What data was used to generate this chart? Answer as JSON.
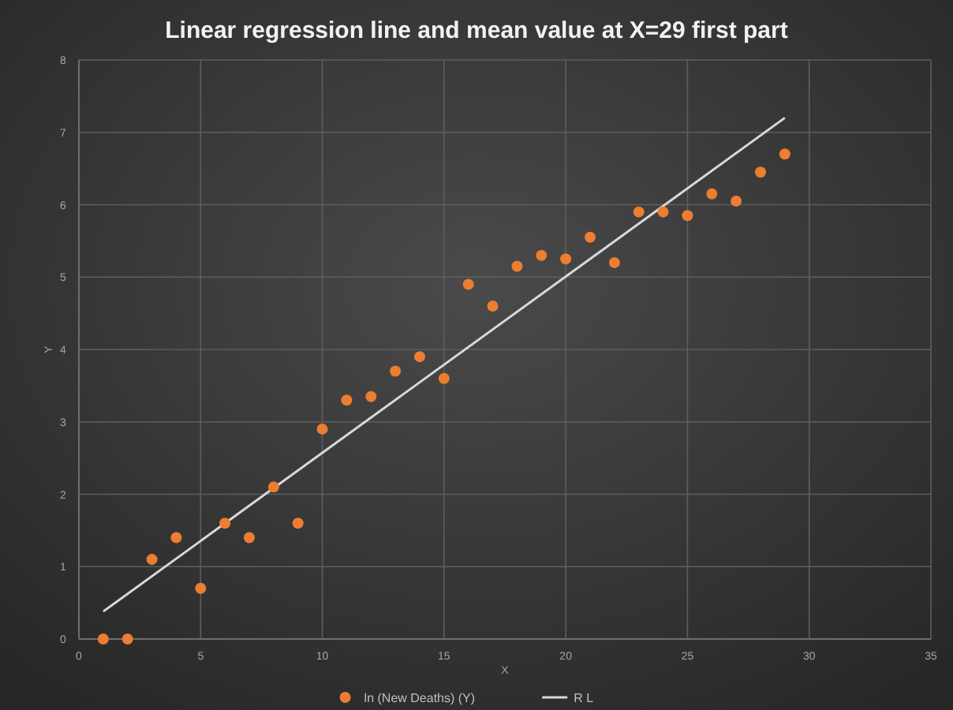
{
  "chart_data": {
    "type": "scatter",
    "title": "Linear regression line and mean  value at X=29 first part",
    "xlabel": "X",
    "ylabel": "Y",
    "xlim": [
      0,
      35
    ],
    "xticks": [
      0,
      5,
      10,
      15,
      20,
      25,
      30,
      35
    ],
    "ylim": [
      0,
      8
    ],
    "yticks": [
      0,
      1,
      2,
      3,
      4,
      5,
      6,
      7,
      8
    ],
    "grid": true,
    "legend": "bottom",
    "series": [
      {
        "name": "ln (New Deaths) (Y)",
        "color": "#ed7d31",
        "marker": "circle",
        "x": [
          1,
          2,
          3,
          4,
          5,
          6,
          7,
          8,
          9,
          10,
          11,
          12,
          13,
          14,
          15,
          16,
          17,
          18,
          19,
          20,
          21,
          22,
          23,
          24,
          25,
          26,
          27,
          28,
          29
        ],
        "values": [
          0,
          0,
          1.1,
          1.4,
          0.7,
          1.6,
          1.4,
          2.1,
          1.6,
          2.9,
          3.3,
          3.35,
          3.7,
          3.9,
          3.6,
          4.9,
          4.6,
          5.15,
          5.3,
          5.25,
          5.55,
          5.2,
          5.9,
          5.9,
          5.85,
          6.15,
          6.05,
          6.45,
          6.7
        ]
      },
      {
        "name": "R L",
        "color": "#d9d9d9",
        "type": "line",
        "x": [
          1,
          29
        ],
        "values": [
          0.38,
          7.2
        ]
      }
    ]
  }
}
